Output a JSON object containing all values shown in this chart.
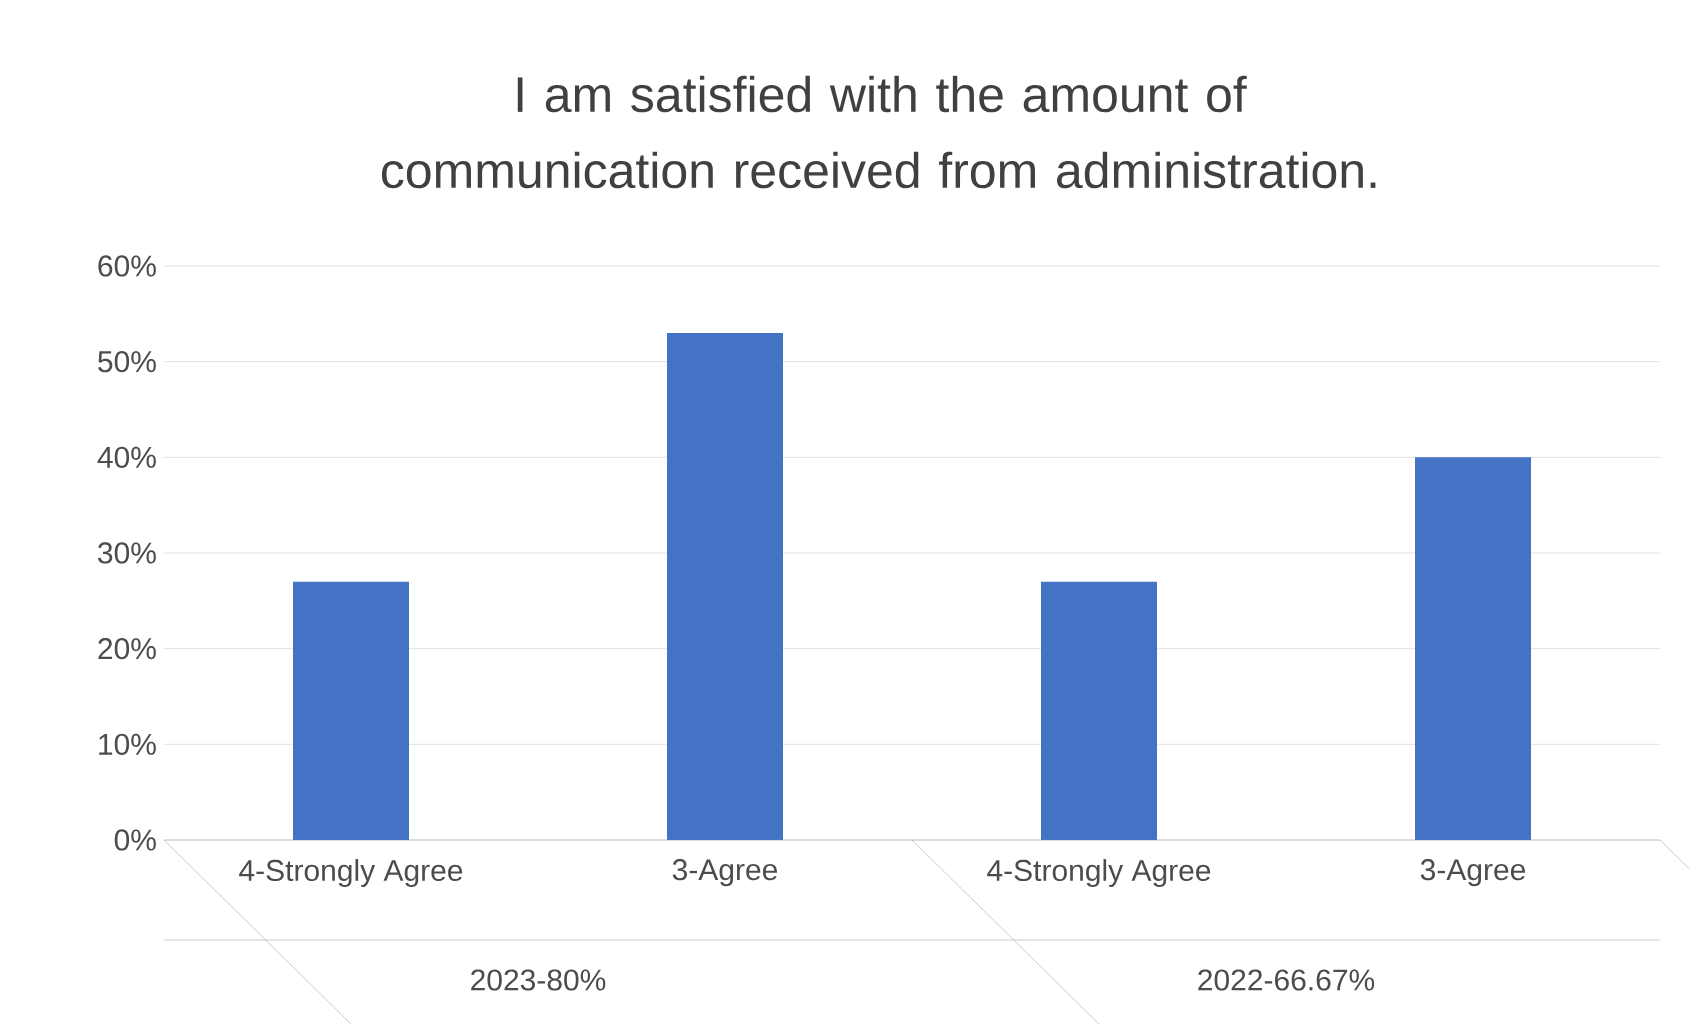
{
  "chart_data": {
    "type": "bar",
    "title": "I am satisfied with the amount of communication received from administration.",
    "categories": [
      "4-Strongly Agree",
      "3-Agree",
      "4-Strongly Agree",
      "3-Agree"
    ],
    "values": [
      27,
      53,
      27,
      40
    ],
    "color": "#4472c4",
    "ylim": [
      0,
      60
    ],
    "yticks": [
      {
        "value": 0,
        "label": "0%"
      },
      {
        "value": 10,
        "label": "10%"
      },
      {
        "value": 20,
        "label": "20%"
      },
      {
        "value": 30,
        "label": "30%"
      },
      {
        "value": 40,
        "label": "40%"
      },
      {
        "value": 50,
        "label": "50%"
      },
      {
        "value": 60,
        "label": "60%"
      }
    ],
    "grid": "y",
    "annotations": [
      "2023-80%",
      "2022-66.67%"
    ]
  }
}
